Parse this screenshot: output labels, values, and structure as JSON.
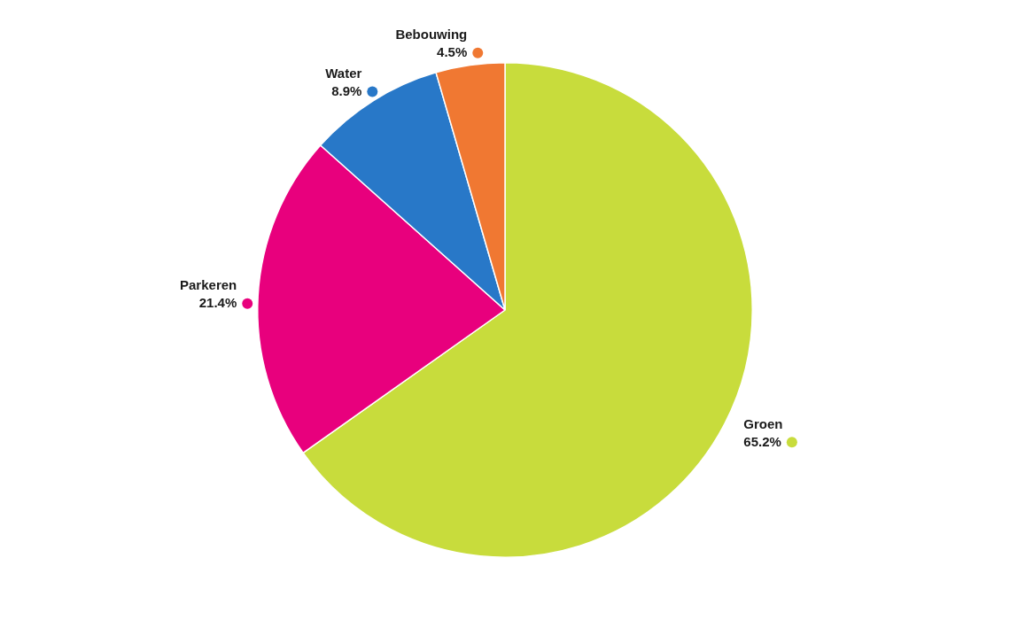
{
  "chart_data": {
    "type": "pie",
    "categories": [
      "Groen",
      "Parkeren",
      "Water",
      "Bebouwing"
    ],
    "values": [
      65.2,
      21.4,
      8.9,
      4.5
    ],
    "value_labels": [
      "65.2%",
      "21.4%",
      "8.9%",
      "4.5%"
    ],
    "colors": [
      "#c8dc3c",
      "#e8007d",
      "#2878c8",
      "#f07832"
    ],
    "data_labels": true
  }
}
